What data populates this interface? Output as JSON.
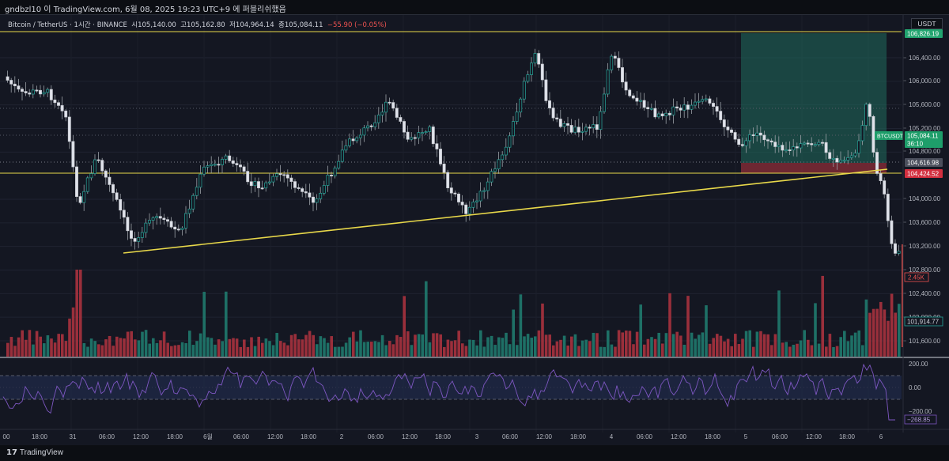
{
  "header": {
    "capture_text": "gndbzl10 이 TradingView.com, 6월 08, 2025 19:23 UTC+9 에 퍼블리쉬했음",
    "symbol_line": "Bitcoin / TetherUS · 1시간 · BINANCE",
    "ohlc": {
      "open": "시105,140.00",
      "high": "고105,162.80",
      "low": "저104,964.14",
      "close": "종105,084.11",
      "change": "−55.90 (−0.05%)"
    },
    "currency": "USDT"
  },
  "price_axis": {
    "ticks": [
      "106,400.00",
      "106,000.00",
      "105,600.00",
      "105,200.00",
      "104,800.00",
      "104,000.00",
      "103,600.00",
      "103,200.00",
      "102,800.00",
      "102,400.00",
      "102,000.00",
      "101,600.00"
    ],
    "labels": {
      "top": {
        "text": "106,826.19",
        "color": "#22a46f"
      },
      "symbol": {
        "text": "BTCUSDT",
        "color": "#1e9e6a"
      },
      "price": {
        "text": "105,084.11",
        "color": "#1e9e6a"
      },
      "countdown": {
        "text": "36:10",
        "color": "#1e9e6a"
      },
      "level_upper": {
        "text": "104,616.98",
        "color": "#4b4f5c"
      },
      "level_lower": {
        "text": "104,424.52",
        "color": "#d32f3f"
      },
      "volume": {
        "text": "2.45K",
        "color": "#ef5350"
      },
      "bottom": {
        "text": "101,914.77",
        "color": "#26a69a"
      }
    }
  },
  "oscillator": {
    "ticks": [
      "200.00",
      "0.00",
      "−200.00"
    ],
    "value": {
      "text": "−268.85",
      "color": "#7e57c2"
    }
  },
  "time_axis": [
    "00",
    "18:00",
    "31",
    "06:00",
    "12:00",
    "18:00",
    "6월",
    "06:00",
    "12:00",
    "18:00",
    "2",
    "06:00",
    "12:00",
    "18:00",
    "3",
    "06:00",
    "12:00",
    "18:00",
    "4",
    "06:00",
    "12:00",
    "18:00",
    "5",
    "06:00",
    "12:00",
    "18:00",
    "6"
  ],
  "footer": {
    "brand": "TradingView",
    "logo_glyph": "17"
  },
  "colors": {
    "up": "#26a69a",
    "down": "#ef5350",
    "trendline": "#e8d84a",
    "osc_line": "#7e57c2",
    "background": "#141722"
  }
}
